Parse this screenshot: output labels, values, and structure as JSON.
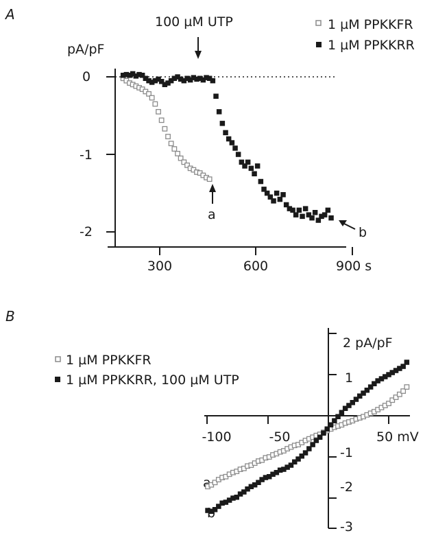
{
  "colors": {
    "ink": "#1a1a1a",
    "open_marker": "#8a8a8a",
    "open_fill": "#ffffff"
  },
  "chart_data": [
    {
      "panel": "A",
      "type": "scatter",
      "ylabel": "pA/pF",
      "x_tick_labels": [
        "300",
        "600",
        "900 s"
      ],
      "y_tick_labels": [
        "0",
        "-1",
        "-2"
      ],
      "xlim": [
        175,
        905
      ],
      "ylim": [
        -2.2,
        0.3
      ],
      "zero_line": "dotted",
      "legend_position": "top-right",
      "annotation": "100 µM UTP",
      "annotation_x": 420,
      "point_labels": [
        "a",
        "b"
      ],
      "series": [
        {
          "name": "1 µM PPKKFR",
          "marker": "open-square",
          "x": [
            200,
            210,
            220,
            230,
            240,
            250,
            260,
            270,
            280,
            290,
            300,
            310,
            320,
            330,
            340,
            350,
            360,
            370,
            380,
            390,
            400,
            410,
            420,
            430,
            440,
            450,
            460,
            470
          ],
          "y": [
            -0.02,
            -0.05,
            -0.08,
            -0.1,
            -0.12,
            -0.14,
            -0.16,
            -0.19,
            -0.22,
            -0.27,
            -0.35,
            -0.45,
            -0.56,
            -0.67,
            -0.77,
            -0.86,
            -0.93,
            -0.99,
            -1.05,
            -1.1,
            -1.14,
            -1.18,
            -1.2,
            -1.23,
            -1.24,
            -1.27,
            -1.3,
            -1.32
          ]
        },
        {
          "name": "1 µM PPKKRR",
          "marker": "filled-square",
          "x": [
            200,
            210,
            220,
            230,
            240,
            250,
            260,
            270,
            280,
            290,
            300,
            310,
            320,
            330,
            340,
            350,
            360,
            370,
            380,
            390,
            400,
            410,
            420,
            430,
            440,
            450,
            460,
            470,
            480,
            490,
            500,
            510,
            520,
            530,
            540,
            550,
            560,
            570,
            580,
            590,
            600,
            610,
            620,
            630,
            640,
            650,
            660,
            670,
            680,
            690,
            700,
            710,
            720,
            730,
            740,
            750,
            760,
            770,
            780,
            790,
            800,
            810,
            820,
            830,
            840,
            850
          ],
          "y": [
            0.02,
            0.03,
            0.02,
            0.04,
            0.01,
            0.03,
            0.02,
            -0.02,
            -0.05,
            -0.07,
            -0.05,
            -0.03,
            -0.06,
            -0.1,
            -0.08,
            -0.05,
            -0.02,
            0.0,
            -0.03,
            -0.05,
            -0.02,
            -0.04,
            -0.01,
            -0.03,
            -0.02,
            -0.04,
            -0.01,
            -0.02,
            -0.05,
            -0.25,
            -0.45,
            -0.6,
            -0.72,
            -0.8,
            -0.85,
            -0.92,
            -1.0,
            -1.1,
            -1.15,
            -1.1,
            -1.18,
            -1.25,
            -1.15,
            -1.35,
            -1.45,
            -1.5,
            -1.55,
            -1.6,
            -1.5,
            -1.58,
            -1.52,
            -1.65,
            -1.7,
            -1.72,
            -1.78,
            -1.72,
            -1.8,
            -1.7,
            -1.78,
            -1.82,
            -1.75,
            -1.85,
            -1.8,
            -1.78,
            -1.72,
            -1.82
          ]
        }
      ]
    },
    {
      "panel": "B",
      "type": "scatter",
      "x_tick_labels": [
        "-100",
        "-50",
        "50 mV"
      ],
      "y_tick_labels": [
        "2 pA/pF",
        "1",
        "-1",
        "-2",
        "-3"
      ],
      "xlim": [
        -105,
        65
      ],
      "ylim": [
        -3,
        2
      ],
      "legend_position": "top-left",
      "point_labels": [
        "a",
        "b"
      ],
      "series": [
        {
          "name": "1 µM PPKKFR",
          "marker": "open-square",
          "x": [
            -100,
            -97,
            -94,
            -91,
            -88,
            -85,
            -82,
            -79,
            -76,
            -73,
            -70,
            -67,
            -64,
            -61,
            -58,
            -55,
            -52,
            -49,
            -46,
            -43,
            -40,
            -37,
            -34,
            -31,
            -28,
            -25,
            -22,
            -19,
            -16,
            -13,
            -10,
            -7,
            -4,
            -1,
            2,
            5,
            8,
            11,
            14,
            17,
            20,
            23,
            26,
            29,
            32,
            35,
            38,
            41,
            44,
            47,
            50,
            53,
            56,
            59,
            62,
            65
          ],
          "y": [
            -1.72,
            -1.68,
            -1.62,
            -1.55,
            -1.5,
            -1.48,
            -1.42,
            -1.38,
            -1.35,
            -1.3,
            -1.28,
            -1.22,
            -1.2,
            -1.15,
            -1.1,
            -1.08,
            -1.02,
            -1.0,
            -0.95,
            -0.92,
            -0.88,
            -0.85,
            -0.8,
            -0.76,
            -0.72,
            -0.7,
            -0.65,
            -0.6,
            -0.56,
            -0.52,
            -0.48,
            -0.45,
            -0.4,
            -0.36,
            -0.32,
            -0.28,
            -0.25,
            -0.22,
            -0.18,
            -0.15,
            -0.12,
            -0.08,
            -0.05,
            -0.02,
            0.02,
            0.06,
            0.1,
            0.15,
            0.2,
            0.25,
            0.3,
            0.38,
            0.45,
            0.52,
            0.6,
            0.7
          ]
        },
        {
          "name": "1 µM PPKKRR, 100 µM UTP",
          "marker": "filled-square",
          "x": [
            -100,
            -97,
            -94,
            -91,
            -88,
            -85,
            -82,
            -79,
            -76,
            -73,
            -70,
            -67,
            -64,
            -61,
            -58,
            -55,
            -52,
            -49,
            -46,
            -43,
            -40,
            -37,
            -34,
            -31,
            -28,
            -25,
            -22,
            -19,
            -16,
            -13,
            -10,
            -7,
            -4,
            -1,
            2,
            5,
            8,
            11,
            14,
            17,
            20,
            23,
            26,
            29,
            32,
            35,
            38,
            41,
            44,
            47,
            50,
            53,
            56,
            59,
            62,
            65
          ],
          "y": [
            -2.3,
            -2.32,
            -2.28,
            -2.2,
            -2.12,
            -2.1,
            -2.05,
            -2.0,
            -1.98,
            -1.9,
            -1.85,
            -1.78,
            -1.72,
            -1.68,
            -1.62,
            -1.55,
            -1.5,
            -1.48,
            -1.42,
            -1.38,
            -1.32,
            -1.3,
            -1.25,
            -1.2,
            -1.12,
            -1.05,
            -0.98,
            -0.9,
            -0.8,
            -0.7,
            -0.6,
            -0.52,
            -0.42,
            -0.32,
            -0.22,
            -0.12,
            -0.02,
            0.08,
            0.18,
            0.25,
            0.32,
            0.4,
            0.48,
            0.55,
            0.62,
            0.7,
            0.78,
            0.85,
            0.9,
            0.95,
            1.0,
            1.05,
            1.1,
            1.15,
            1.2,
            1.3
          ]
        }
      ]
    }
  ]
}
